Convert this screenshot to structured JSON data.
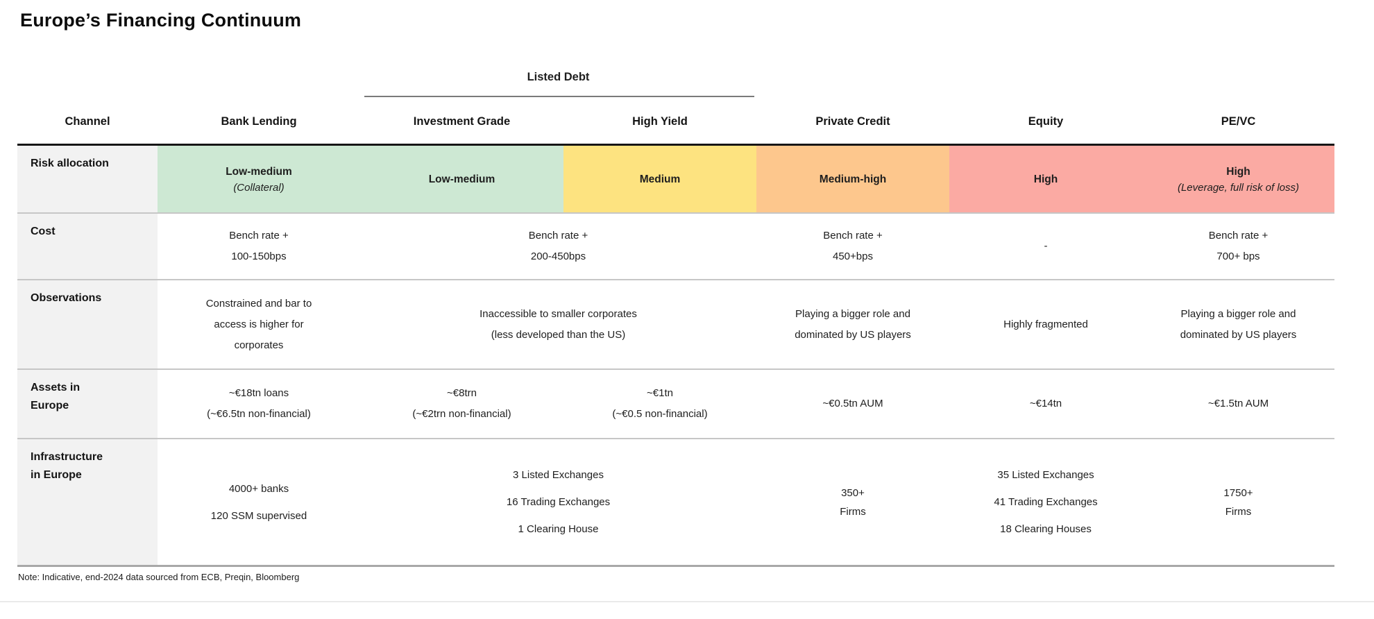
{
  "title": "Europe’s Financing Continuum",
  "note": "Note: Indicative, end-2024 data sourced from ECB, Preqin, Bloomberg",
  "colors": {
    "risk_low": "#cde8d3",
    "risk_medium": "#fde380",
    "risk_medium_high": "#fdc78d",
    "risk_high": "#fbaaa3",
    "row_label_bg": "#f2f2f2"
  },
  "chart_data": {
    "type": "table",
    "title": "Europe’s Financing Continuum",
    "group_header": {
      "label": "Listed Debt",
      "spans_columns": [
        "Investment Grade",
        "High Yield"
      ]
    },
    "columns": [
      "Channel",
      "Bank Lending",
      "Investment Grade",
      "High Yield",
      "Private Credit",
      "Equity",
      "PE/VC"
    ],
    "rows": {
      "risk": {
        "label_lines": [
          "Risk allocation"
        ],
        "cells": [
          {
            "text": "Low-medium",
            "subtext": "(Collateral)",
            "color": "#cde8d3"
          },
          {
            "text": "Low-medium",
            "color": "#cde8d3"
          },
          {
            "text": "Medium",
            "color": "#fde380"
          },
          {
            "text": "Medium-high",
            "color": "#fdc78d"
          },
          {
            "text": "High",
            "color": "#fbaaa3"
          },
          {
            "text": "High",
            "subtext": "(Leverage, full risk of loss)",
            "color": "#fbaaa3"
          }
        ]
      },
      "cost": {
        "label_lines": [
          "Cost"
        ],
        "cells": [
          {
            "lines": [
              "Bench rate +",
              "100-150bps"
            ]
          },
          {
            "lines": [
              "Bench rate +",
              "200-450bps"
            ],
            "merged_across": "Listed Debt"
          },
          {
            "lines": [
              "Bench rate +",
              "450+bps"
            ]
          },
          {
            "lines": [
              "-"
            ]
          },
          {
            "lines": [
              "Bench rate +",
              "700+ bps"
            ]
          }
        ]
      },
      "observations": {
        "label_lines": [
          "Observations"
        ],
        "cells": [
          {
            "lines": [
              "Constrained and bar to",
              "access is higher for",
              "corporates"
            ]
          },
          {
            "lines": [
              "Inaccessible to smaller corporates",
              "(less developed than the US)"
            ],
            "merged_across": "Listed Debt"
          },
          {
            "lines": [
              "Playing a bigger role and",
              "dominated by US players"
            ]
          },
          {
            "lines": [
              "Highly fragmented"
            ]
          },
          {
            "lines": [
              "Playing a bigger role and",
              "dominated by US players"
            ]
          }
        ]
      },
      "assets": {
        "label_lines": [
          "Assets in",
          "Europe"
        ],
        "cells": [
          {
            "lines": [
              "~€18tn loans",
              "(~€6.5tn non-financial)"
            ]
          },
          {
            "lines": [
              "~€8trn",
              "(~€2trn non-financial)"
            ]
          },
          {
            "lines": [
              "~€1tn",
              "(~€0.5 non-financial)"
            ]
          },
          {
            "lines": [
              "~€0.5tn AUM"
            ]
          },
          {
            "lines": [
              "~€14tn"
            ]
          },
          {
            "lines": [
              "~€1.5tn AUM"
            ]
          }
        ]
      },
      "infrastructure": {
        "label_lines": [
          "Infrastructure",
          "in Europe"
        ],
        "cells": [
          {
            "lines": [
              "4000+ banks",
              "120 SSM supervised"
            ]
          },
          {
            "lines": [
              "3 Listed Exchanges",
              "16 Trading Exchanges",
              "1 Clearing House"
            ],
            "merged_across": "Listed Debt"
          },
          {
            "lines": [
              "350+",
              "Firms"
            ]
          },
          {
            "lines": [
              "35 Listed Exchanges",
              "41 Trading Exchanges",
              "18 Clearing Houses"
            ]
          },
          {
            "lines": [
              "1750+",
              "Firms"
            ]
          }
        ]
      }
    }
  }
}
